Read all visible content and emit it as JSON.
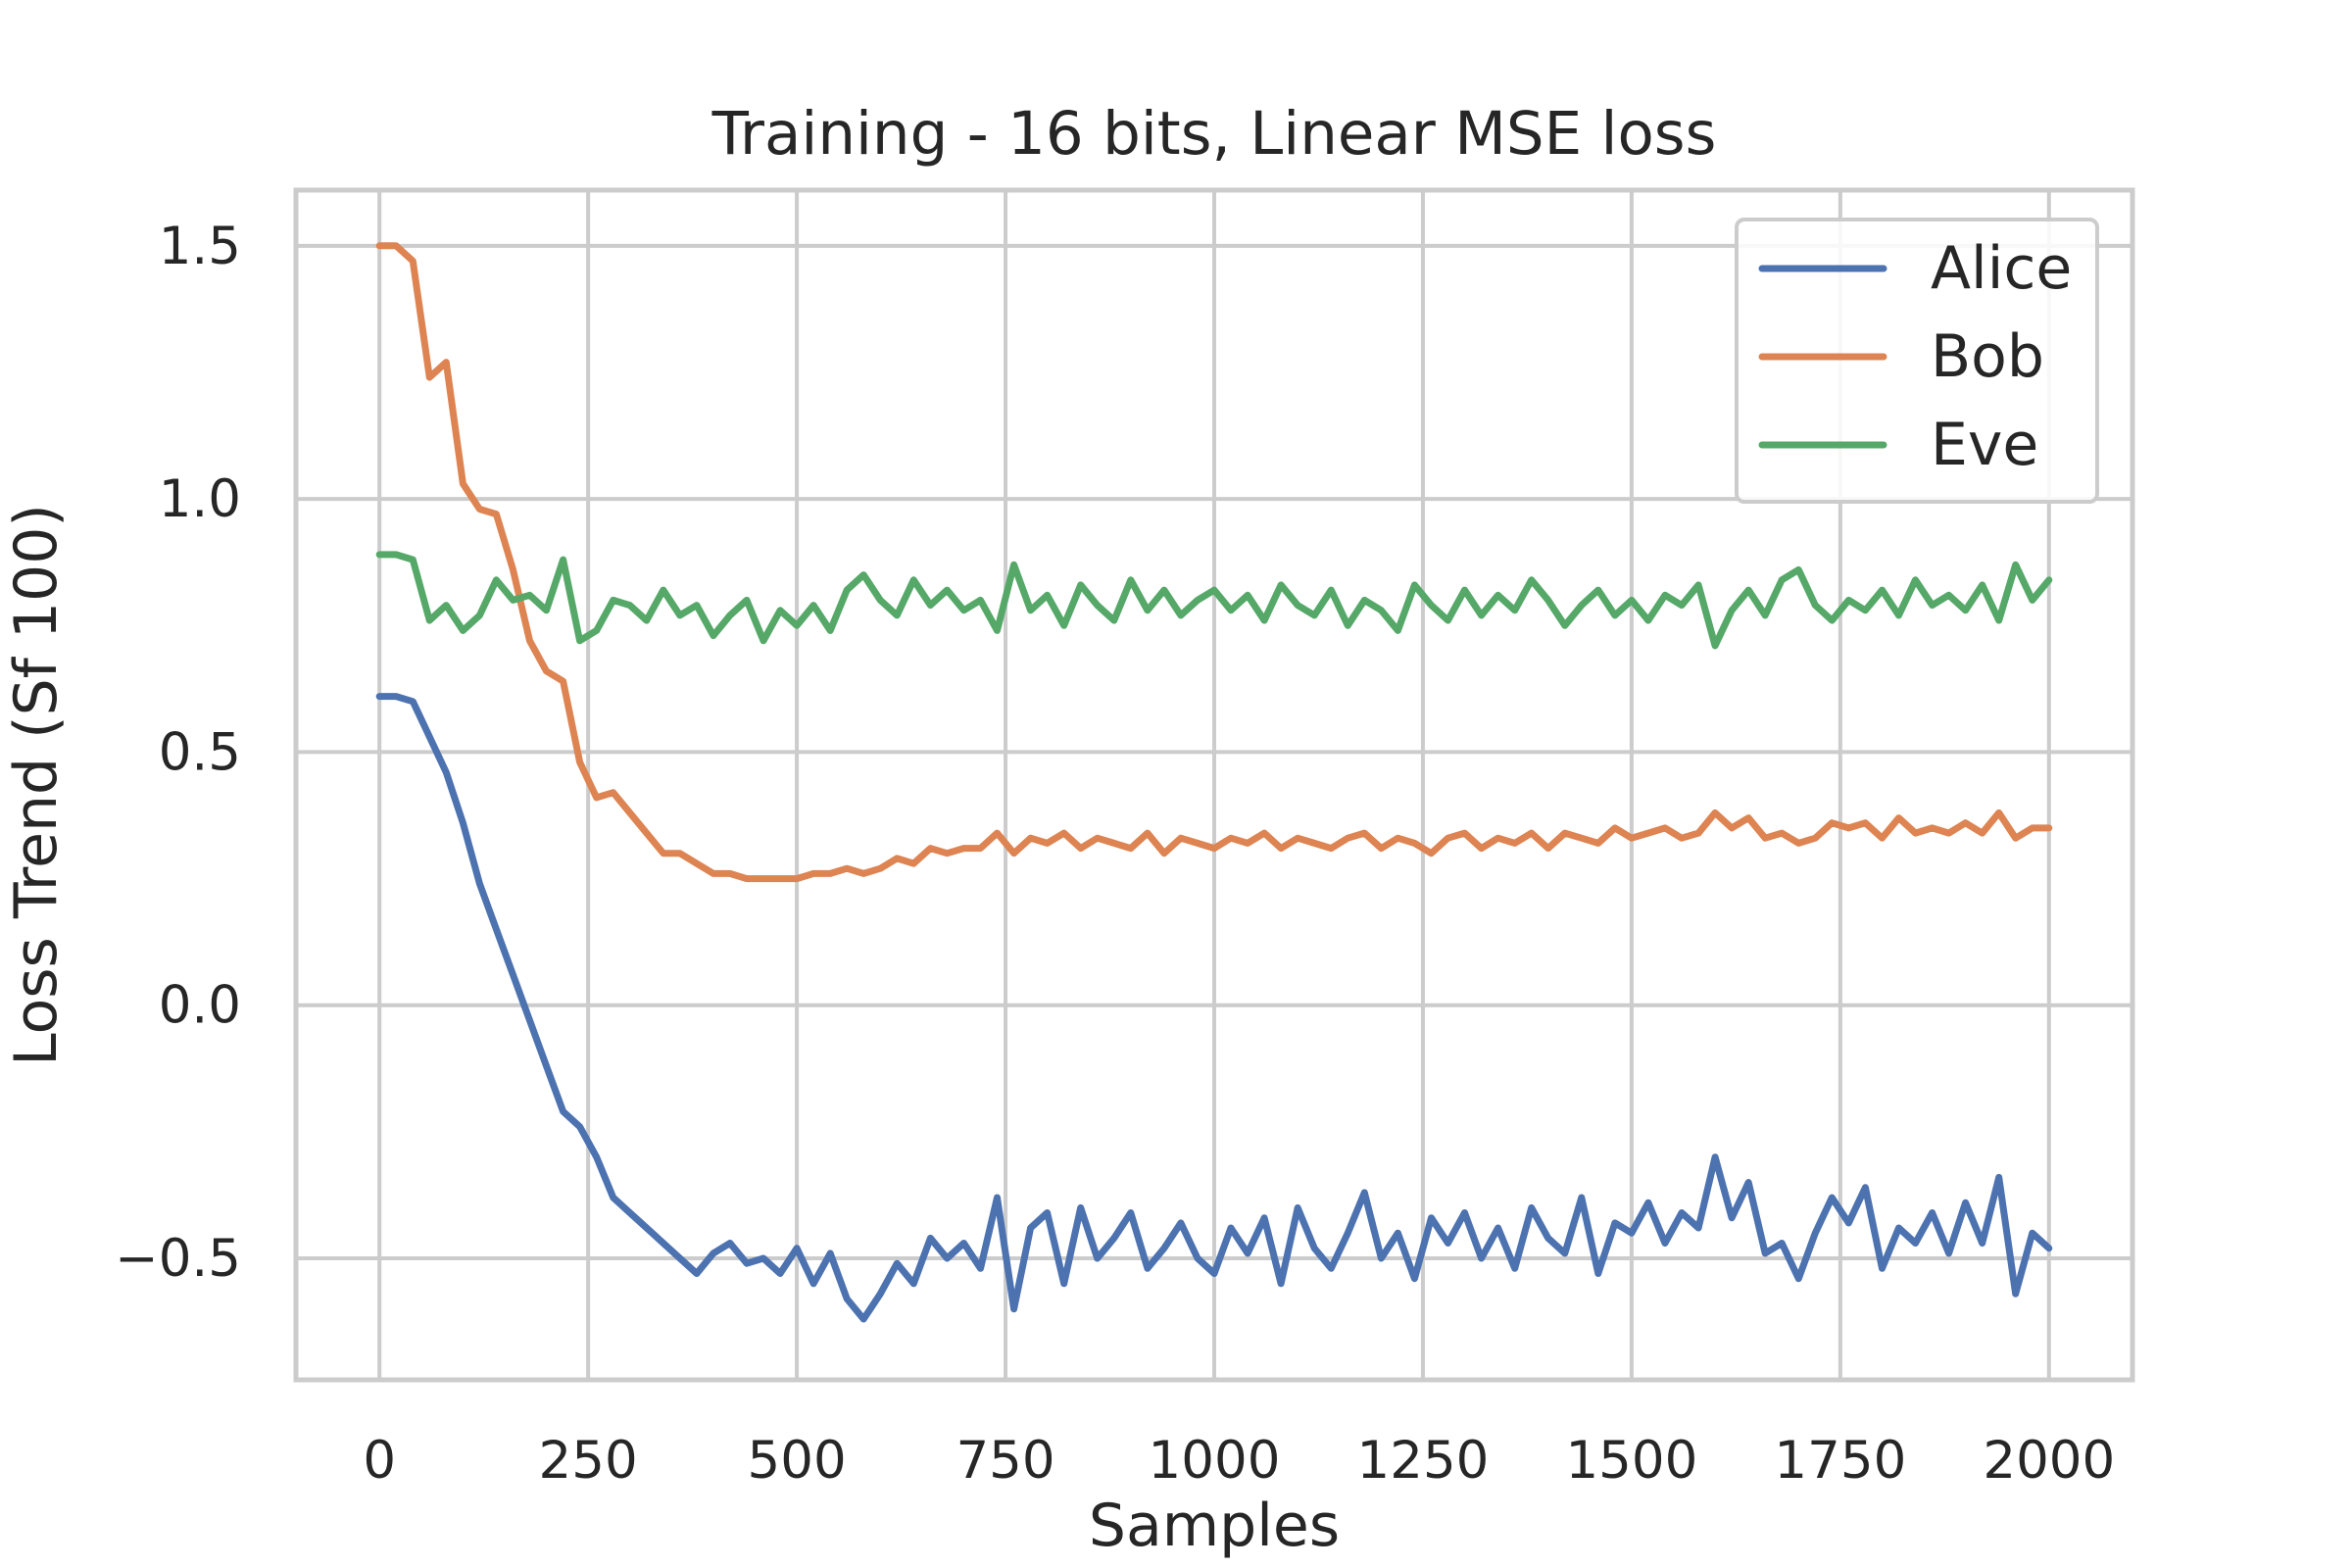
{
  "chart_data": {
    "type": "line",
    "title": "Training - 16 bits, Linear MSE loss",
    "xlabel": "Samples",
    "ylabel": "Loss Trend (Sf 100)",
    "xlim": [
      -100,
      2100
    ],
    "ylim": [
      -0.74,
      1.61
    ],
    "x_ticks": [
      0,
      250,
      500,
      750,
      1000,
      1250,
      1500,
      1750,
      2000
    ],
    "x_tick_labels": [
      "0",
      "250",
      "500",
      "750",
      "1000",
      "1250",
      "1500",
      "1750",
      "2000"
    ],
    "y_ticks": [
      1.5,
      1.0,
      0.5,
      0.0,
      -0.5
    ],
    "y_tick_labels": [
      "1.5",
      "1.0",
      "0.5",
      "0.0",
      "−0.5"
    ],
    "grid": true,
    "legend_position": "top-right",
    "series": [
      {
        "name": "Alice",
        "color": "#4c72b0",
        "x": [
          0,
          20,
          40,
          60,
          80,
          100,
          120,
          140,
          160,
          180,
          200,
          220,
          240,
          260,
          280,
          300,
          320,
          340,
          360,
          380,
          400,
          420,
          440,
          460,
          480,
          500,
          520,
          540,
          560,
          580,
          600,
          620,
          640,
          660,
          680,
          700,
          720,
          740,
          760,
          780,
          800,
          820,
          840,
          860,
          880,
          900,
          920,
          940,
          960,
          980,
          1000,
          1020,
          1040,
          1060,
          1080,
          1100,
          1120,
          1140,
          1160,
          1180,
          1200,
          1220,
          1240,
          1260,
          1280,
          1300,
          1320,
          1340,
          1360,
          1380,
          1400,
          1420,
          1440,
          1460,
          1480,
          1500,
          1520,
          1540,
          1560,
          1580,
          1600,
          1620,
          1640,
          1660,
          1680,
          1700,
          1720,
          1740,
          1760,
          1780,
          1800,
          1820,
          1840,
          1860,
          1880,
          1900,
          1920,
          1940,
          1960,
          1980,
          2000
        ],
        "y": [
          0.61,
          0.61,
          0.6,
          0.53,
          0.46,
          0.36,
          0.24,
          0.15,
          0.06,
          -0.03,
          -0.12,
          -0.21,
          -0.24,
          -0.3,
          -0.38,
          -0.41,
          -0.44,
          -0.47,
          -0.5,
          -0.53,
          -0.49,
          -0.47,
          -0.51,
          -0.5,
          -0.53,
          -0.48,
          -0.55,
          -0.49,
          -0.58,
          -0.62,
          -0.57,
          -0.51,
          -0.55,
          -0.46,
          -0.5,
          -0.47,
          -0.52,
          -0.38,
          -0.6,
          -0.44,
          -0.41,
          -0.55,
          -0.4,
          -0.5,
          -0.46,
          -0.41,
          -0.52,
          -0.48,
          -0.43,
          -0.5,
          -0.53,
          -0.44,
          -0.49,
          -0.42,
          -0.55,
          -0.4,
          -0.48,
          -0.52,
          -0.45,
          -0.37,
          -0.5,
          -0.45,
          -0.54,
          -0.42,
          -0.47,
          -0.41,
          -0.5,
          -0.44,
          -0.52,
          -0.4,
          -0.46,
          -0.49,
          -0.38,
          -0.53,
          -0.43,
          -0.45,
          -0.39,
          -0.47,
          -0.41,
          -0.44,
          -0.3,
          -0.42,
          -0.35,
          -0.49,
          -0.47,
          -0.54,
          -0.45,
          -0.38,
          -0.43,
          -0.36,
          -0.52,
          -0.44,
          -0.47,
          -0.41,
          -0.49,
          -0.39,
          -0.47,
          -0.34,
          -0.57,
          -0.45,
          -0.48
        ]
      },
      {
        "name": "Bob",
        "color": "#dd8452",
        "x": [
          0,
          20,
          40,
          60,
          80,
          100,
          120,
          140,
          160,
          180,
          200,
          220,
          240,
          260,
          280,
          300,
          320,
          340,
          360,
          380,
          400,
          420,
          440,
          460,
          480,
          500,
          520,
          540,
          560,
          580,
          600,
          620,
          640,
          660,
          680,
          700,
          720,
          740,
          760,
          780,
          800,
          820,
          840,
          860,
          880,
          900,
          920,
          940,
          960,
          980,
          1000,
          1020,
          1040,
          1060,
          1080,
          1100,
          1120,
          1140,
          1160,
          1180,
          1200,
          1220,
          1240,
          1260,
          1280,
          1300,
          1320,
          1340,
          1360,
          1380,
          1400,
          1420,
          1440,
          1460,
          1480,
          1500,
          1520,
          1540,
          1560,
          1580,
          1600,
          1620,
          1640,
          1660,
          1680,
          1700,
          1720,
          1740,
          1760,
          1780,
          1800,
          1820,
          1840,
          1860,
          1880,
          1900,
          1920,
          1940,
          1960,
          1980,
          2000
        ],
        "y": [
          1.5,
          1.5,
          1.47,
          1.24,
          1.27,
          1.03,
          0.98,
          0.97,
          0.86,
          0.72,
          0.66,
          0.64,
          0.48,
          0.41,
          0.42,
          0.38,
          0.34,
          0.3,
          0.3,
          0.28,
          0.26,
          0.26,
          0.25,
          0.25,
          0.25,
          0.25,
          0.26,
          0.26,
          0.27,
          0.26,
          0.27,
          0.29,
          0.28,
          0.31,
          0.3,
          0.31,
          0.31,
          0.34,
          0.3,
          0.33,
          0.32,
          0.34,
          0.31,
          0.33,
          0.32,
          0.31,
          0.34,
          0.3,
          0.33,
          0.32,
          0.31,
          0.33,
          0.32,
          0.34,
          0.31,
          0.33,
          0.32,
          0.31,
          0.33,
          0.34,
          0.31,
          0.33,
          0.32,
          0.3,
          0.33,
          0.34,
          0.31,
          0.33,
          0.32,
          0.34,
          0.31,
          0.34,
          0.33,
          0.32,
          0.35,
          0.33,
          0.34,
          0.35,
          0.33,
          0.34,
          0.38,
          0.35,
          0.37,
          0.33,
          0.34,
          0.32,
          0.33,
          0.36,
          0.35,
          0.36,
          0.33,
          0.37,
          0.34,
          0.35,
          0.34,
          0.36,
          0.34,
          0.38,
          0.33,
          0.35,
          0.35
        ]
      },
      {
        "name": "Eve",
        "color": "#55a868",
        "x": [
          0,
          20,
          40,
          60,
          80,
          100,
          120,
          140,
          160,
          180,
          200,
          220,
          240,
          260,
          280,
          300,
          320,
          340,
          360,
          380,
          400,
          420,
          440,
          460,
          480,
          500,
          520,
          540,
          560,
          580,
          600,
          620,
          640,
          660,
          680,
          700,
          720,
          740,
          760,
          780,
          800,
          820,
          840,
          860,
          880,
          900,
          920,
          940,
          960,
          980,
          1000,
          1020,
          1040,
          1060,
          1080,
          1100,
          1120,
          1140,
          1160,
          1180,
          1200,
          1220,
          1240,
          1260,
          1280,
          1300,
          1320,
          1340,
          1360,
          1380,
          1400,
          1420,
          1440,
          1460,
          1480,
          1500,
          1520,
          1540,
          1560,
          1580,
          1600,
          1620,
          1640,
          1660,
          1680,
          1700,
          1720,
          1740,
          1760,
          1780,
          1800,
          1820,
          1840,
          1860,
          1880,
          1900,
          1920,
          1940,
          1960,
          1980,
          2000
        ],
        "y": [
          0.89,
          0.89,
          0.88,
          0.76,
          0.79,
          0.74,
          0.77,
          0.84,
          0.8,
          0.81,
          0.78,
          0.88,
          0.72,
          0.74,
          0.8,
          0.79,
          0.76,
          0.82,
          0.77,
          0.79,
          0.73,
          0.77,
          0.8,
          0.72,
          0.78,
          0.75,
          0.79,
          0.74,
          0.82,
          0.85,
          0.8,
          0.77,
          0.84,
          0.79,
          0.82,
          0.78,
          0.8,
          0.74,
          0.87,
          0.78,
          0.81,
          0.75,
          0.83,
          0.79,
          0.76,
          0.84,
          0.78,
          0.82,
          0.77,
          0.8,
          0.82,
          0.78,
          0.81,
          0.76,
          0.83,
          0.79,
          0.77,
          0.82,
          0.75,
          0.8,
          0.78,
          0.74,
          0.83,
          0.79,
          0.76,
          0.82,
          0.77,
          0.81,
          0.78,
          0.84,
          0.8,
          0.75,
          0.79,
          0.82,
          0.77,
          0.8,
          0.76,
          0.81,
          0.79,
          0.83,
          0.71,
          0.78,
          0.82,
          0.77,
          0.84,
          0.86,
          0.79,
          0.76,
          0.8,
          0.78,
          0.82,
          0.77,
          0.84,
          0.79,
          0.81,
          0.78,
          0.83,
          0.76,
          0.87,
          0.8,
          0.84
        ]
      }
    ]
  }
}
